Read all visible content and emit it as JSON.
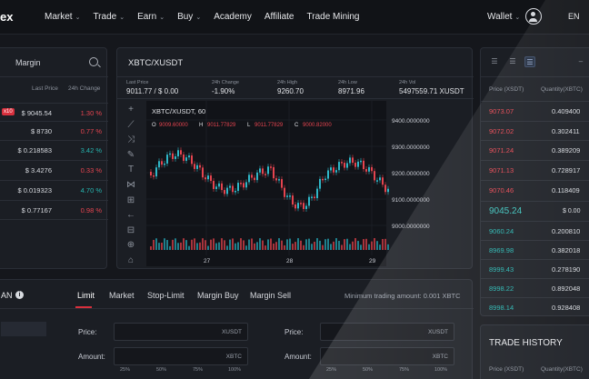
{
  "topbar": {
    "logo": "ex",
    "nav": [
      {
        "label": "Market",
        "dropdown": true
      },
      {
        "label": "Trade",
        "dropdown": true
      },
      {
        "label": "Earn",
        "dropdown": true
      },
      {
        "label": "Buy",
        "dropdown": true
      },
      {
        "label": "Academy",
        "dropdown": false
      },
      {
        "label": "Affiliate",
        "dropdown": false
      },
      {
        "label": "Trade Mining",
        "dropdown": false
      }
    ],
    "wallet": "Wallet",
    "lang": "EN"
  },
  "market": {
    "search_label": "Margin",
    "col_last_price": "Last Price",
    "col_change": "24h Change",
    "badge": "x10",
    "rows": [
      {
        "price": "$ 9045.54",
        "change": "1.30 %",
        "dir": "down"
      },
      {
        "price": "$ 8730",
        "change": "0.77 %",
        "dir": "down"
      },
      {
        "price": "$ 0.218583",
        "change": "3.42 %",
        "dir": "up"
      },
      {
        "price": "$ 3.4276",
        "change": "0.33 %",
        "dir": "down"
      },
      {
        "price": "$ 0.019323",
        "change": "4.70 %",
        "dir": "up"
      },
      {
        "price": "$ 0.77167",
        "change": "0.98 %",
        "dir": "down"
      }
    ]
  },
  "chart_panel": {
    "pair": "XBTC/XUSDT",
    "stats": [
      {
        "k": "Last Price",
        "v": "9011.77 / $ 0.00"
      },
      {
        "k": "24h Change",
        "v": "-1.90%"
      },
      {
        "k": "24h High",
        "v": "9260.70"
      },
      {
        "k": "24h Low",
        "v": "8971.96"
      },
      {
        "k": "24h Vol",
        "v": "5497559.71 XUSDT"
      }
    ],
    "legend": {
      "title": "XBTC/XUSDT, 60",
      "o": "9009.60000",
      "h": "9011.77829",
      "l": "9011.77829",
      "c": "9000.82000"
    },
    "tools": [
      "crosshair",
      "trend-line",
      "brush",
      "pencil",
      "text",
      "pattern",
      "measure",
      "arrow",
      "lock",
      "zoom",
      "home"
    ]
  },
  "chart_data": {
    "type": "candlestick",
    "y_ticks": [
      "9400.0000000",
      "9300.0000000",
      "9200.0000000",
      "9100.0000000",
      "9000.0000000"
    ],
    "x_ticks": [
      "27",
      "28",
      "29"
    ],
    "ylim": [
      8950,
      9450
    ]
  },
  "orderbook": {
    "col_price": "Price (XSDT)",
    "col_qty": "Quantity(XBTC)",
    "asks": [
      {
        "price": "9073.07",
        "qty": "0.409400"
      },
      {
        "price": "9072.02",
        "qty": "0.302411"
      },
      {
        "price": "9071.24",
        "qty": "0.389209"
      },
      {
        "price": "9071.13",
        "qty": "0.728917"
      },
      {
        "price": "9070.46",
        "qty": "0.118409"
      }
    ],
    "mid_price": "9045.24",
    "mid_usd": "$ 0.00",
    "bids": [
      {
        "price": "9060.24",
        "qty": "0.200810"
      },
      {
        "price": "8969.98",
        "qty": "0.382018"
      },
      {
        "price": "8999.43",
        "qty": "0.278190"
      },
      {
        "price": "8998.22",
        "qty": "0.892048"
      },
      {
        "price": "8998.14",
        "qty": "0.928408"
      }
    ]
  },
  "history": {
    "title": "TRADE HISTORY",
    "col_price": "Price (XSDT)",
    "col_qty": "Quantity(XBTC)"
  },
  "trade": {
    "lead": "AN",
    "tabs": [
      "Limit",
      "Market",
      "Stop-Limit",
      "Margin Buy",
      "Margin Sell"
    ],
    "min_amount": "Minimum trading amount: 0.001 XBTC",
    "price_label": "Price:",
    "amount_label": "Amount:",
    "unit_price": "XUSDT",
    "unit_amount": "XBTC",
    "pcts": [
      "25%",
      "50%",
      "75%",
      "100%"
    ]
  }
}
